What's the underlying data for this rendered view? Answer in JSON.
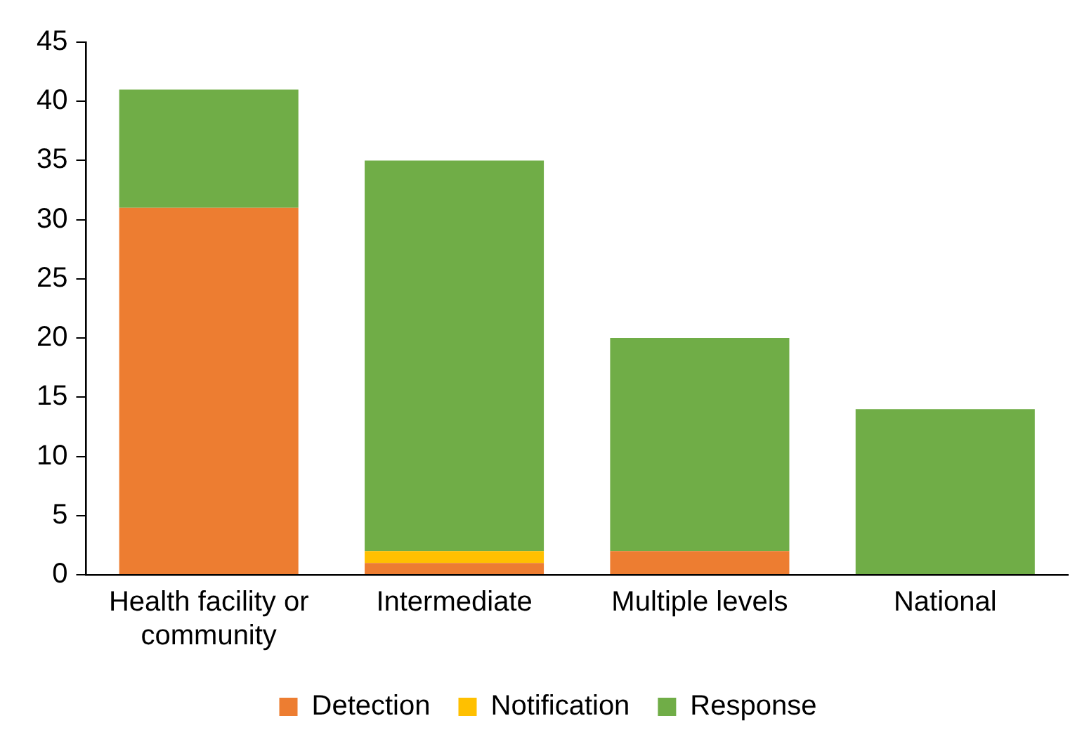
{
  "chart_data": {
    "type": "bar",
    "stacked": true,
    "categories": [
      "Health facility or community",
      "Intermediate",
      "Multiple levels",
      "National"
    ],
    "series": [
      {
        "name": "Detection",
        "color": "#ed7d31",
        "values": [
          31,
          1,
          2,
          0
        ]
      },
      {
        "name": "Notification",
        "color": "#ffc000",
        "values": [
          0,
          1,
          0,
          0
        ]
      },
      {
        "name": "Response",
        "color": "#70ad47",
        "values": [
          10,
          33,
          18,
          14
        ]
      }
    ],
    "ylim": [
      0,
      45
    ],
    "yticks": [
      0,
      5,
      10,
      15,
      20,
      25,
      30,
      35,
      40,
      45
    ],
    "grid": false,
    "legend": "bottom"
  }
}
